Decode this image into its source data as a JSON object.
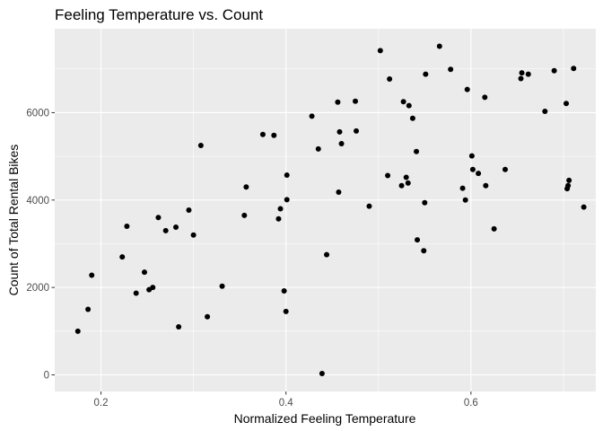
{
  "chart_data": {
    "type": "scatter",
    "title": "Feeling Temperature vs. Count",
    "xlabel": "Normalized Feeling Temperature",
    "ylabel": "Count of Total Rental Bikes",
    "xlim": [
      0.15,
      0.735
    ],
    "ylim": [
      -380,
      7920
    ],
    "x_ticks": [
      0.2,
      0.4,
      0.6
    ],
    "x_tick_labels": [
      "0.2",
      "0.4",
      "0.6"
    ],
    "y_ticks": [
      0,
      2000,
      4000,
      6000
    ],
    "y_tick_labels": [
      "0",
      "2000",
      "4000",
      "6000"
    ],
    "grid": true,
    "panel_background": "#ebebeb",
    "grid_color": "#ffffff",
    "point_color": "#000000",
    "points": [
      {
        "x": 0.175,
        "y": 1000
      },
      {
        "x": 0.186,
        "y": 1500
      },
      {
        "x": 0.19,
        "y": 2280
      },
      {
        "x": 0.223,
        "y": 2700
      },
      {
        "x": 0.228,
        "y": 3400
      },
      {
        "x": 0.238,
        "y": 1870
      },
      {
        "x": 0.247,
        "y": 2350
      },
      {
        "x": 0.252,
        "y": 1950
      },
      {
        "x": 0.256,
        "y": 2000
      },
      {
        "x": 0.262,
        "y": 3600
      },
      {
        "x": 0.27,
        "y": 3300
      },
      {
        "x": 0.281,
        "y": 3380
      },
      {
        "x": 0.284,
        "y": 1100
      },
      {
        "x": 0.295,
        "y": 3770
      },
      {
        "x": 0.3,
        "y": 3200
      },
      {
        "x": 0.308,
        "y": 5250
      },
      {
        "x": 0.315,
        "y": 1330
      },
      {
        "x": 0.331,
        "y": 2030
      },
      {
        "x": 0.355,
        "y": 3650
      },
      {
        "x": 0.357,
        "y": 4300
      },
      {
        "x": 0.375,
        "y": 5500
      },
      {
        "x": 0.387,
        "y": 5480
      },
      {
        "x": 0.392,
        "y": 3570
      },
      {
        "x": 0.394,
        "y": 3800
      },
      {
        "x": 0.398,
        "y": 1920
      },
      {
        "x": 0.4,
        "y": 1450
      },
      {
        "x": 0.401,
        "y": 4010
      },
      {
        "x": 0.401,
        "y": 4570
      },
      {
        "x": 0.428,
        "y": 5920
      },
      {
        "x": 0.435,
        "y": 5170
      },
      {
        "x": 0.439,
        "y": 30
      },
      {
        "x": 0.444,
        "y": 2750
      },
      {
        "x": 0.456,
        "y": 6240
      },
      {
        "x": 0.457,
        "y": 4180
      },
      {
        "x": 0.458,
        "y": 5560
      },
      {
        "x": 0.46,
        "y": 5290
      },
      {
        "x": 0.475,
        "y": 6260
      },
      {
        "x": 0.476,
        "y": 5580
      },
      {
        "x": 0.49,
        "y": 3860
      },
      {
        "x": 0.502,
        "y": 7420
      },
      {
        "x": 0.51,
        "y": 4560
      },
      {
        "x": 0.512,
        "y": 6770
      },
      {
        "x": 0.525,
        "y": 4330
      },
      {
        "x": 0.527,
        "y": 6250
      },
      {
        "x": 0.53,
        "y": 4520
      },
      {
        "x": 0.532,
        "y": 4390
      },
      {
        "x": 0.533,
        "y": 6160
      },
      {
        "x": 0.537,
        "y": 5870
      },
      {
        "x": 0.541,
        "y": 5110
      },
      {
        "x": 0.542,
        "y": 3090
      },
      {
        "x": 0.549,
        "y": 2840
      },
      {
        "x": 0.55,
        "y": 3940
      },
      {
        "x": 0.551,
        "y": 6880
      },
      {
        "x": 0.566,
        "y": 7520
      },
      {
        "x": 0.578,
        "y": 6990
      },
      {
        "x": 0.591,
        "y": 4270
      },
      {
        "x": 0.594,
        "y": 4000
      },
      {
        "x": 0.596,
        "y": 6530
      },
      {
        "x": 0.601,
        "y": 5010
      },
      {
        "x": 0.602,
        "y": 4700
      },
      {
        "x": 0.608,
        "y": 4610
      },
      {
        "x": 0.615,
        "y": 6350
      },
      {
        "x": 0.616,
        "y": 4330
      },
      {
        "x": 0.625,
        "y": 3340
      },
      {
        "x": 0.637,
        "y": 4700
      },
      {
        "x": 0.654,
        "y": 6780
      },
      {
        "x": 0.655,
        "y": 6910
      },
      {
        "x": 0.662,
        "y": 6880
      },
      {
        "x": 0.68,
        "y": 6030
      },
      {
        "x": 0.69,
        "y": 6960
      },
      {
        "x": 0.703,
        "y": 6210
      },
      {
        "x": 0.704,
        "y": 4260
      },
      {
        "x": 0.705,
        "y": 4330
      },
      {
        "x": 0.706,
        "y": 4450
      },
      {
        "x": 0.711,
        "y": 7010
      },
      {
        "x": 0.722,
        "y": 3840
      }
    ]
  }
}
